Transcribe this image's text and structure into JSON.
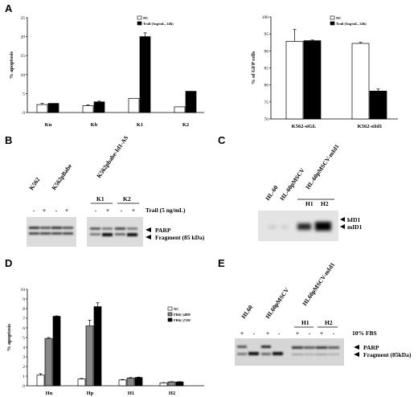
{
  "panels": {
    "A": "A",
    "B": "B",
    "C": "C",
    "D": "D",
    "E": "E"
  },
  "chart_data": [
    {
      "type": "bar",
      "panel": "A-left",
      "ylabel": "% apoptosis",
      "ylim": [
        0,
        25
      ],
      "yticks": [
        "0",
        "5",
        "10",
        "15",
        "20",
        "25"
      ],
      "categories": [
        "Kn",
        "Kb",
        "K1",
        "K2"
      ],
      "series": [
        {
          "name": "NC",
          "color": "#ffffff",
          "values": [
            2.1,
            1.8,
            3.7,
            1.5
          ],
          "err": [
            0.3,
            0.2,
            0,
            0
          ]
        },
        {
          "name": "Trail (5ng/mL, 24h)",
          "color": "#000000",
          "values": [
            2.4,
            2.8,
            20.0,
            5.6
          ],
          "err": [
            0,
            0.2,
            1.0,
            0
          ]
        }
      ]
    },
    {
      "type": "bar",
      "panel": "A-right",
      "ylabel": "% of GFP cells",
      "ylim": [
        70,
        100
      ],
      "yticks": [
        "70",
        "75",
        "80",
        "85",
        "90",
        "95",
        "100"
      ],
      "categories": [
        "K562-siGL",
        "K562-siId1"
      ],
      "series": [
        {
          "name": "NC",
          "color": "#ffffff",
          "values": [
            92.8,
            92.2
          ],
          "err": [
            3.5,
            0.3
          ]
        },
        {
          "name": "Trail (5ng/mL, 24h)",
          "color": "#000000",
          "values": [
            93.0,
            78.2
          ],
          "err": [
            0.2,
            0.6
          ]
        }
      ]
    },
    {
      "type": "bar",
      "panel": "D",
      "ylabel": "% apoptosis",
      "ylim": [
        0,
        10
      ],
      "yticks": [
        "0",
        "1",
        "2",
        "3",
        "4",
        "5",
        "6",
        "7",
        "8",
        "9",
        "10"
      ],
      "categories": [
        "Hn",
        "Hp",
        "H1",
        "H2"
      ],
      "series": [
        {
          "name": "NC",
          "color": "#ffffff",
          "values": [
            1.1,
            0.7,
            0.6,
            0.3
          ],
          "err": [
            0.15,
            0.05,
            0.05,
            0.03
          ]
        },
        {
          "name": "FBS(-)48H",
          "color": "#888888",
          "values": [
            4.9,
            6.2,
            0.8,
            0.4
          ],
          "err": [
            0.1,
            0.6,
            0.05,
            0.03
          ]
        },
        {
          "name": "FBS(-)72H",
          "color": "#000000",
          "values": [
            7.2,
            8.2,
            0.85,
            0.4
          ],
          "err": [
            0.05,
            0.4,
            0.05,
            0.03
          ]
        }
      ]
    }
  ],
  "blotB": {
    "groups": [
      "K562",
      "K562pBabe",
      "K562pbabe-Id1-AS"
    ],
    "clones": [
      "K1",
      "K2"
    ],
    "signs": [
      "-",
      "+",
      "-",
      "+",
      "-",
      "+",
      "-",
      "+"
    ],
    "treatment": "Trail (5 ng/mL)",
    "band1": "PARP",
    "band2": "Fragment (85 kDa)"
  },
  "blotC": {
    "lanes": [
      "HL-60",
      "HL-60pMSCV",
      "HL-60pMSCV-mId1"
    ],
    "clones": [
      "H1",
      "H2"
    ],
    "band1": "hID1",
    "band2": "mID1"
  },
  "blotE": {
    "lanes": [
      "HL60",
      "HL60pMSCV",
      "HL60pMSCV-mId1"
    ],
    "clones": [
      "H1",
      "H2"
    ],
    "signs": [
      "+",
      "-",
      "+",
      "-",
      "+",
      "-",
      "+",
      "-"
    ],
    "treatment": "10% FBS",
    "band1": "PARP",
    "band2": "Fragment (85kDa)"
  }
}
